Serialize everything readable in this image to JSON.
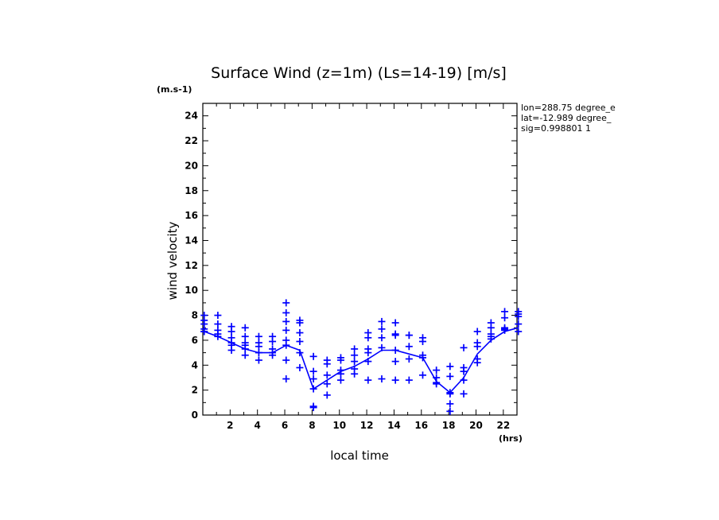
{
  "chart_data": {
    "type": "scatter",
    "title": "Surface Wind (z=1m) (Ls=14-19) [m/s]",
    "y_unit": "(m.s-1)",
    "x_unit": "(hrs)",
    "xlabel": "local time",
    "ylabel": "wind velocity",
    "xlim": [
      0,
      23
    ],
    "ylim": [
      0,
      25
    ],
    "x_ticks": [
      "2",
      "4",
      "6",
      "8",
      "10",
      "12",
      "14",
      "16",
      "18",
      "20",
      "22"
    ],
    "x_tick_values": [
      2,
      4,
      6,
      8,
      10,
      12,
      14,
      16,
      18,
      20,
      22
    ],
    "y_ticks": [
      "0",
      "2",
      "4",
      "6",
      "8",
      "10",
      "12",
      "14",
      "16",
      "18",
      "20",
      "22",
      "24"
    ],
    "y_tick_values": [
      0,
      2,
      4,
      6,
      8,
      10,
      12,
      14,
      16,
      18,
      20,
      22,
      24
    ],
    "info_lines": [
      "lon=288.75 degree_e",
      "lat=-12.989 degree_",
      "sig=0.998801 1"
    ],
    "color": "#0000ff",
    "series": [
      {
        "kind": "line",
        "x": [
          0.1,
          1.1,
          2.1,
          3.1,
          4.1,
          5.1,
          6.1,
          7.1,
          8.1,
          9.1,
          10.1,
          11.1,
          12.1,
          13.1,
          14.1,
          15.1,
          16.1,
          17.1,
          18.1,
          19.1,
          20.1,
          21.1,
          22.1,
          23.1
        ],
        "y": [
          6.7,
          6.3,
          5.8,
          5.3,
          5.0,
          5.0,
          5.6,
          5.2,
          2.1,
          2.8,
          3.5,
          3.9,
          4.5,
          5.2,
          5.2,
          4.9,
          4.6,
          2.7,
          1.8,
          3.0,
          4.9,
          6.0,
          6.7,
          7.0
        ]
      },
      {
        "kind": "scatter",
        "x": [
          0.1,
          0.1,
          0.1,
          0.1,
          0.1,
          0.1,
          1.1,
          1.1,
          1.1,
          1.1,
          1.1,
          2.1,
          2.1,
          2.1,
          2.1,
          2.1,
          2.1,
          3.1,
          3.1,
          3.1,
          3.1,
          3.1,
          3.1,
          4.1,
          4.1,
          4.1,
          4.1,
          4.1,
          5.1,
          5.1,
          5.1,
          5.1,
          5.1,
          6.1,
          6.1,
          6.1,
          6.1,
          6.1,
          6.1,
          6.1,
          6.1,
          7.1,
          7.1,
          7.1,
          7.1,
          7.1,
          7.1,
          8.1,
          8.1,
          8.1,
          8.1,
          8.1,
          8.1,
          9.1,
          9.1,
          9.1,
          9.1,
          9.1,
          10.1,
          10.1,
          10.1,
          10.1,
          10.1,
          11.1,
          11.1,
          11.1,
          11.1,
          11.1,
          12.1,
          12.1,
          12.1,
          12.1,
          12.1,
          12.1,
          13.1,
          13.1,
          13.1,
          13.1,
          13.1,
          14.1,
          14.1,
          14.1,
          14.1,
          14.1,
          14.1,
          15.1,
          15.1,
          15.1,
          15.1,
          15.1,
          16.1,
          16.1,
          16.1,
          16.1,
          16.1,
          17.1,
          17.1,
          17.1,
          17.1,
          18.1,
          18.1,
          18.1,
          18.1,
          18.1,
          18.1,
          19.1,
          19.1,
          19.1,
          19.1,
          19.1,
          20.1,
          20.1,
          20.1,
          20.1,
          20.1,
          21.1,
          21.1,
          21.1,
          21.1,
          21.1,
          22.1,
          22.1,
          22.1,
          22.1,
          22.1,
          23.1,
          23.1,
          23.1,
          23.1,
          23.1
        ],
        "y": [
          8.0,
          7.6,
          7.3,
          6.9,
          6.7,
          6.7,
          8.0,
          7.3,
          6.8,
          6.5,
          6.3,
          7.1,
          6.7,
          6.2,
          5.8,
          5.6,
          5.2,
          7.0,
          6.3,
          5.8,
          5.6,
          5.3,
          4.8,
          6.3,
          5.8,
          5.5,
          5.0,
          4.4,
          6.3,
          5.9,
          5.3,
          5.0,
          4.8,
          9.0,
          8.2,
          7.5,
          6.8,
          6.0,
          5.6,
          4.4,
          2.9,
          7.6,
          7.4,
          6.6,
          5.9,
          5.0,
          3.8,
          4.7,
          3.5,
          2.9,
          2.1,
          0.7,
          0.6,
          4.4,
          4.1,
          3.2,
          2.5,
          1.6,
          4.6,
          4.4,
          3.6,
          3.3,
          2.8,
          5.3,
          4.8,
          4.3,
          3.7,
          3.3,
          6.6,
          6.2,
          5.3,
          5.0,
          4.3,
          2.8,
          7.5,
          6.9,
          6.2,
          5.4,
          2.9,
          7.4,
          6.5,
          6.4,
          5.2,
          4.3,
          2.8,
          6.4,
          6.4,
          5.5,
          4.5,
          2.8,
          6.2,
          5.9,
          4.8,
          4.6,
          3.2,
          3.6,
          3.0,
          2.6,
          2.5,
          3.9,
          3.1,
          1.8,
          1.7,
          0.9,
          0.3,
          5.4,
          3.8,
          3.5,
          2.8,
          1.7,
          6.7,
          5.8,
          5.5,
          4.5,
          4.2,
          7.4,
          7.0,
          6.5,
          6.3,
          6.1,
          8.3,
          7.8,
          7.0,
          6.9,
          6.8,
          8.3,
          8.1,
          7.9,
          7.3,
          6.7
        ]
      }
    ]
  }
}
